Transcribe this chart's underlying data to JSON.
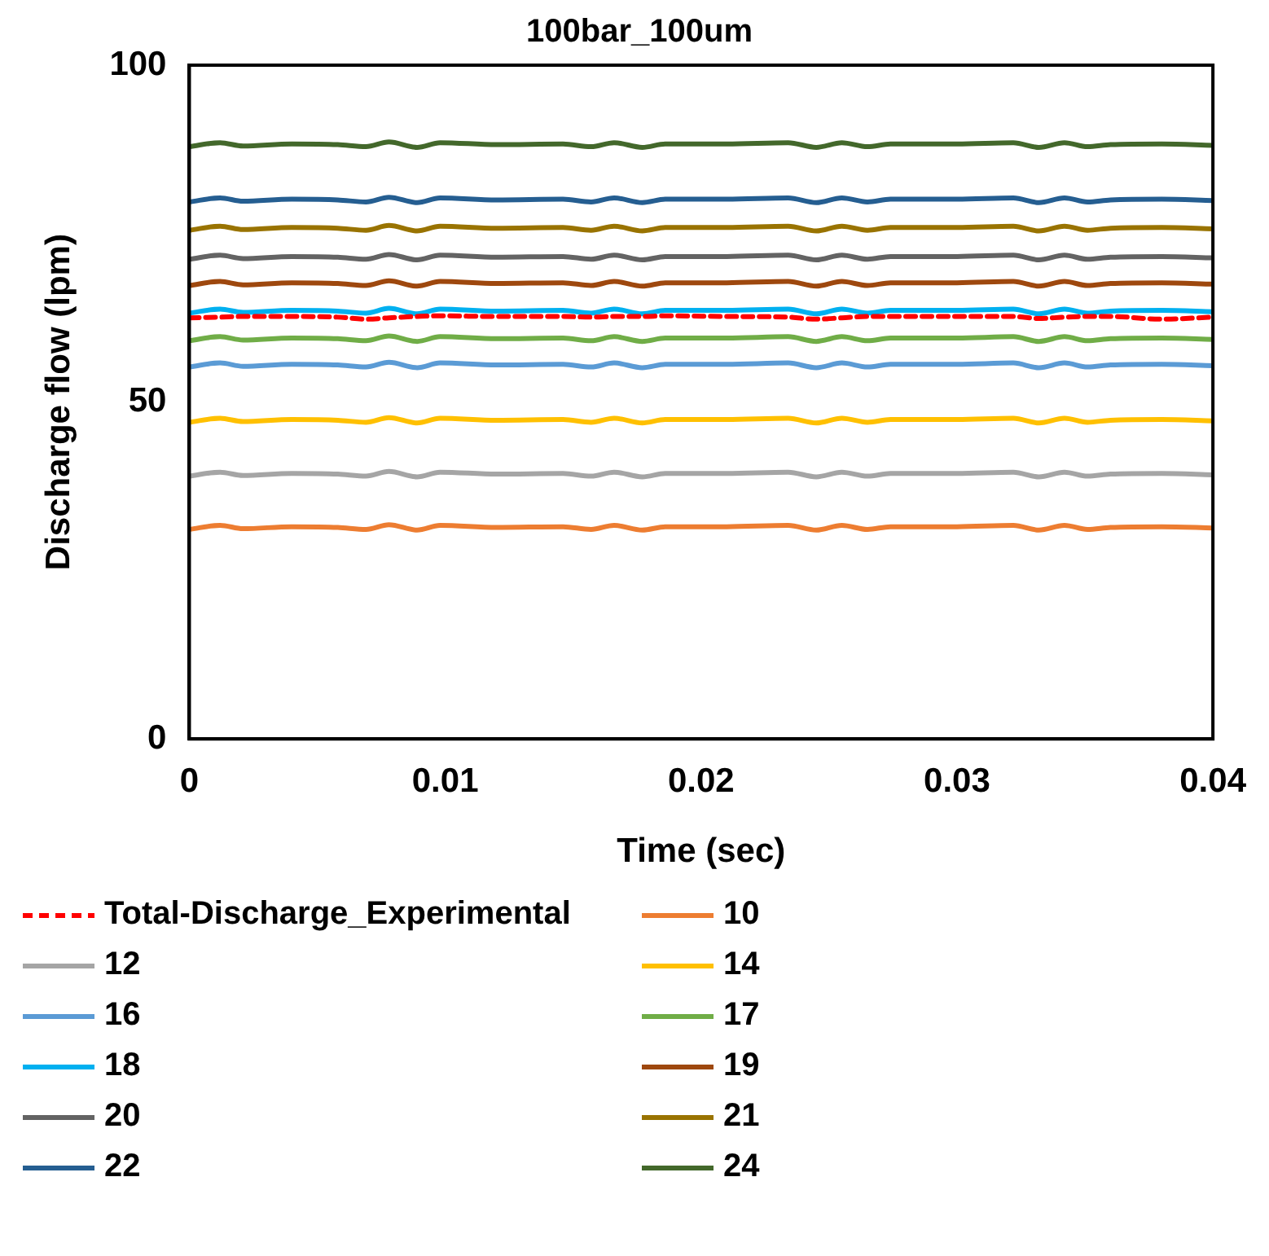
{
  "chart_data": {
    "type": "line",
    "title": "100bar_100um",
    "xlabel": "Time (sec)",
    "ylabel": "Discharge flow (lpm)",
    "x": [
      0,
      0.0012,
      0.0021,
      0.004,
      0.0058,
      0.0069,
      0.0078,
      0.0089,
      0.0098,
      0.012,
      0.0146,
      0.0157,
      0.0166,
      0.0177,
      0.0186,
      0.021,
      0.0234,
      0.0245,
      0.0255,
      0.0265,
      0.0274,
      0.03,
      0.0322,
      0.0332,
      0.0342,
      0.0351,
      0.036,
      0.038,
      0.04
    ],
    "xlim": [
      0,
      0.04
    ],
    "xticks": [
      0,
      0.01,
      0.02,
      0.03,
      0.04
    ],
    "ylim": [
      0,
      100
    ],
    "yticks": [
      0,
      50,
      100
    ],
    "grid": false,
    "legend": "bottom",
    "marker": "none",
    "series": [
      {
        "name": "Total-Discharge_Experimental",
        "color": "#ff0000",
        "line_style": "dashed",
        "values": [
          62.5,
          62.6,
          62.7,
          62.7,
          62.6,
          62.3,
          62.5,
          62.7,
          62.8,
          62.7,
          62.7,
          62.6,
          62.7,
          62.7,
          62.8,
          62.7,
          62.6,
          62.3,
          62.5,
          62.7,
          62.7,
          62.7,
          62.7,
          62.4,
          62.6,
          62.7,
          62.7,
          62.3,
          62.6
        ]
      },
      {
        "name": "10",
        "color": "#ed7d31",
        "values": [
          31.1,
          31.7,
          31.2,
          31.5,
          31.4,
          31.1,
          31.8,
          31.0,
          31.7,
          31.4,
          31.5,
          31.1,
          31.7,
          31.0,
          31.5,
          31.5,
          31.7,
          31.0,
          31.7,
          31.1,
          31.5,
          31.5,
          31.7,
          31.0,
          31.7,
          31.1,
          31.4,
          31.5,
          31.3
        ]
      },
      {
        "name": "12",
        "color": "#a5a5a5",
        "values": [
          39.0,
          39.6,
          39.1,
          39.4,
          39.3,
          39.0,
          39.7,
          38.9,
          39.6,
          39.3,
          39.4,
          39.0,
          39.6,
          38.9,
          39.4,
          39.4,
          39.6,
          38.9,
          39.6,
          39.0,
          39.4,
          39.4,
          39.6,
          38.9,
          39.6,
          39.0,
          39.3,
          39.4,
          39.2
        ]
      },
      {
        "name": "14",
        "color": "#ffc000",
        "values": [
          47.0,
          47.6,
          47.1,
          47.4,
          47.3,
          47.0,
          47.7,
          46.9,
          47.6,
          47.3,
          47.4,
          47.0,
          47.6,
          46.9,
          47.4,
          47.4,
          47.6,
          46.9,
          47.6,
          47.0,
          47.4,
          47.4,
          47.6,
          46.9,
          47.6,
          47.0,
          47.3,
          47.4,
          47.2
        ]
      },
      {
        "name": "16",
        "color": "#5b9bd5",
        "values": [
          55.2,
          55.8,
          55.3,
          55.6,
          55.5,
          55.2,
          55.9,
          55.1,
          55.8,
          55.5,
          55.6,
          55.2,
          55.8,
          55.1,
          55.6,
          55.6,
          55.8,
          55.1,
          55.8,
          55.2,
          55.6,
          55.6,
          55.8,
          55.1,
          55.8,
          55.2,
          55.5,
          55.6,
          55.4
        ]
      },
      {
        "name": "17",
        "color": "#70ad47",
        "values": [
          59.1,
          59.7,
          59.2,
          59.5,
          59.4,
          59.1,
          59.8,
          59.0,
          59.7,
          59.4,
          59.5,
          59.1,
          59.7,
          59.0,
          59.5,
          59.5,
          59.7,
          59.0,
          59.7,
          59.1,
          59.5,
          59.5,
          59.7,
          59.0,
          59.7,
          59.1,
          59.4,
          59.5,
          59.3
        ]
      },
      {
        "name": "18",
        "color": "#00b0f0",
        "values": [
          63.2,
          63.8,
          63.3,
          63.6,
          63.5,
          63.2,
          63.9,
          63.1,
          63.8,
          63.5,
          63.6,
          63.2,
          63.8,
          63.1,
          63.6,
          63.6,
          63.8,
          63.1,
          63.8,
          63.2,
          63.6,
          63.6,
          63.8,
          63.1,
          63.8,
          63.2,
          63.5,
          63.6,
          63.4
        ]
      },
      {
        "name": "19",
        "color": "#9e480e",
        "values": [
          67.3,
          67.9,
          67.4,
          67.7,
          67.6,
          67.3,
          68.0,
          67.2,
          67.9,
          67.6,
          67.7,
          67.3,
          67.9,
          67.2,
          67.7,
          67.7,
          67.9,
          67.2,
          67.9,
          67.3,
          67.7,
          67.7,
          67.9,
          67.2,
          67.9,
          67.3,
          67.6,
          67.7,
          67.5
        ]
      },
      {
        "name": "20",
        "color": "#636363",
        "values": [
          71.2,
          71.8,
          71.3,
          71.6,
          71.5,
          71.2,
          71.9,
          71.1,
          71.8,
          71.5,
          71.6,
          71.2,
          71.8,
          71.1,
          71.6,
          71.6,
          71.8,
          71.1,
          71.8,
          71.2,
          71.6,
          71.6,
          71.8,
          71.1,
          71.8,
          71.2,
          71.5,
          71.6,
          71.4
        ]
      },
      {
        "name": "21",
        "color": "#997300",
        "values": [
          75.5,
          76.1,
          75.6,
          75.9,
          75.8,
          75.5,
          76.2,
          75.4,
          76.1,
          75.8,
          75.9,
          75.5,
          76.1,
          75.4,
          75.9,
          75.9,
          76.1,
          75.4,
          76.1,
          75.5,
          75.9,
          75.9,
          76.1,
          75.4,
          76.1,
          75.5,
          75.8,
          75.9,
          75.7
        ]
      },
      {
        "name": "22",
        "color": "#255e91",
        "values": [
          79.7,
          80.3,
          79.8,
          80.1,
          80.0,
          79.7,
          80.4,
          79.6,
          80.3,
          80.0,
          80.1,
          79.7,
          80.3,
          79.6,
          80.1,
          80.1,
          80.3,
          79.6,
          80.3,
          79.7,
          80.1,
          80.1,
          80.3,
          79.6,
          80.3,
          79.7,
          80.0,
          80.1,
          79.9
        ]
      },
      {
        "name": "24",
        "color": "#43682b",
        "values": [
          87.9,
          88.5,
          88.0,
          88.3,
          88.2,
          87.9,
          88.6,
          87.8,
          88.5,
          88.2,
          88.3,
          87.9,
          88.5,
          87.8,
          88.3,
          88.3,
          88.5,
          87.8,
          88.5,
          87.9,
          88.3,
          88.3,
          88.5,
          87.8,
          88.5,
          87.9,
          88.2,
          88.3,
          88.1
        ]
      }
    ]
  }
}
